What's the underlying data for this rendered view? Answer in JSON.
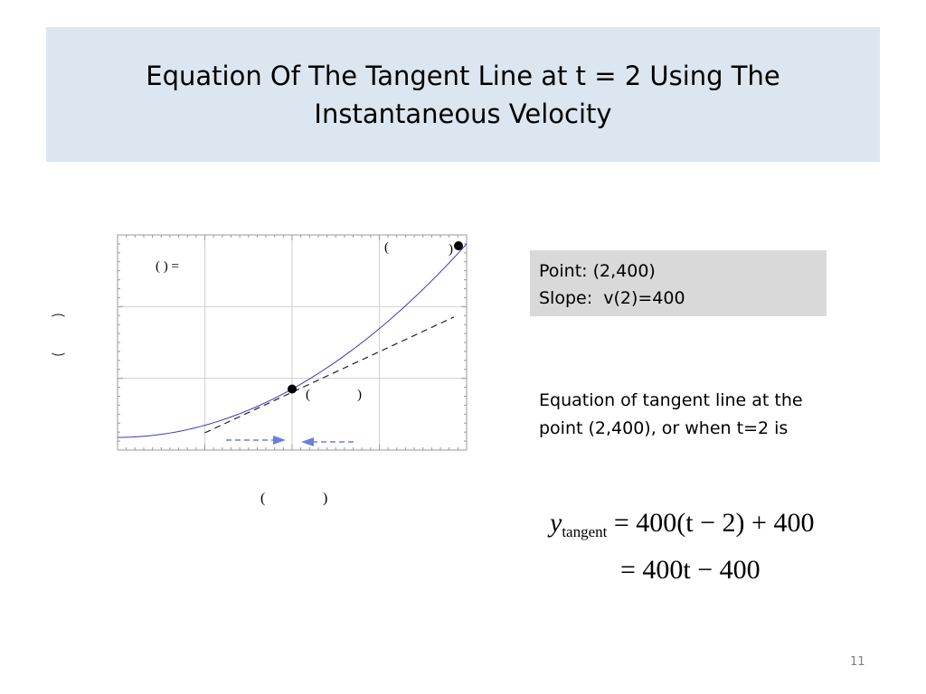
{
  "slide": {
    "title": "Equation Of The Tangent Line at t = 2 Using The Instantaneous Velocity",
    "number": "11"
  },
  "info_box": {
    "line1": "Point: (2,400)",
    "line2": "Slope:  v(2)=400"
  },
  "description": "Equation of tangent line at the point (2,400), or when t=2 is",
  "equation": {
    "var": "y",
    "subscript": "tangent",
    "rhs1": "= 400(t − 2) + 400",
    "rhs2": "= 400t − 400"
  },
  "graph": {
    "fx_label": "( ) =",
    "point_label_left": "(",
    "point_label_right": ")",
    "xlabel_left": "(",
    "xlabel_right": ")",
    "ylabel_top": "⁀",
    "ylabel_bottom": "‿",
    "colors": {
      "curve": "#3b3bb8",
      "tangent": "#222222",
      "arrow": "#6b7fe0",
      "grid": "#cfcfcf"
    }
  },
  "chart_data": {
    "type": "line",
    "series": [
      {
        "name": "",
        "kind": "curve",
        "x": [
          0,
          0.5,
          1,
          1.5,
          2,
          2.5,
          3,
          3.5,
          4
        ],
        "y": [
          0,
          25,
          100,
          225,
          400,
          625,
          900,
          1225,
          1600
        ]
      },
      {
        "name": "",
        "kind": "tangent",
        "x": [
          1,
          4
        ],
        "y": [
          0,
          1200
        ]
      }
    ],
    "points": [
      {
        "x": 2,
        "y": 400
      },
      {
        "x": 4,
        "y": 1600
      }
    ],
    "xlim": [
      0,
      4
    ],
    "ylim": [
      0,
      1600
    ],
    "grid": true
  }
}
